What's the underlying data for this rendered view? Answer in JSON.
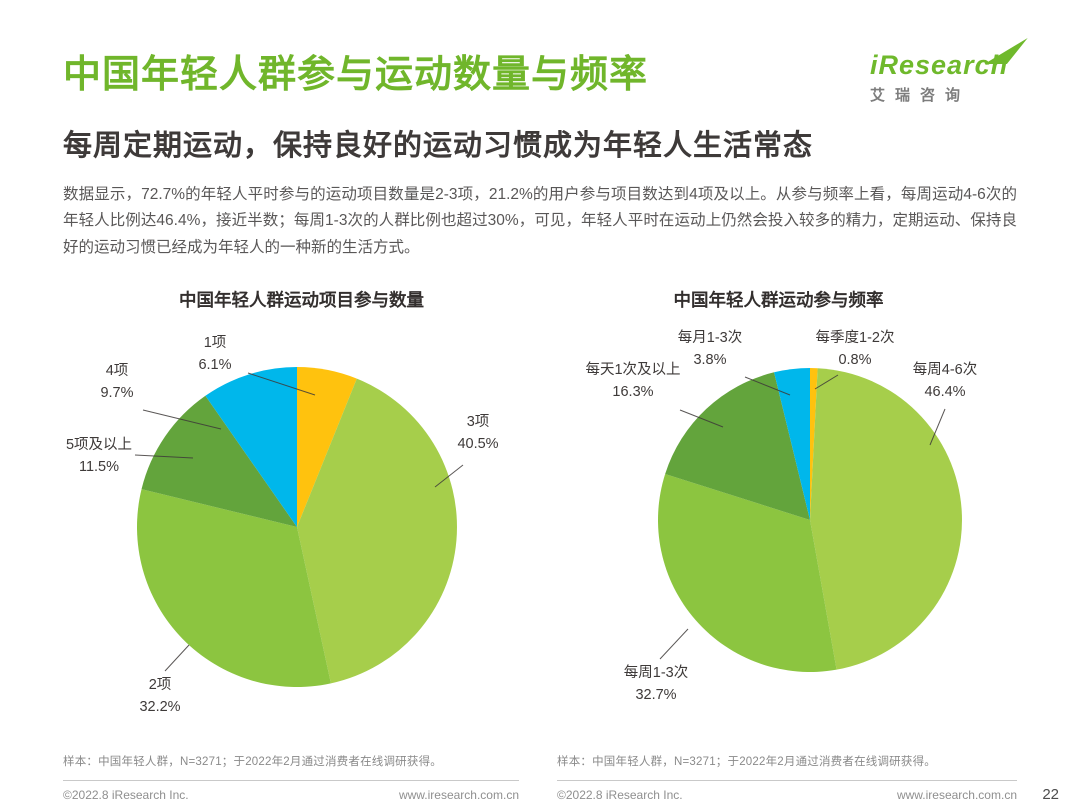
{
  "header": {
    "title": "中国年轻人群参与运动数量与频率",
    "subtitle": "每周定期运动，保持良好的运动习惯成为年轻人生活常态",
    "body": "数据显示，72.7%的年轻人平时参与的运动项目数量是2-3项，21.2%的用户参与项目数达到4项及以上。从参与频率上看，每周运动4-6次的年轻人比例达46.4%，接近半数；每周1-3次的人群比例也超过30%，可见，年轻人平时在运动上仍然会投入较多的精力，定期运动、保持良好的运动习惯已经成为年轻人的一种新的生活方式。"
  },
  "logo": {
    "brand": "iResearch",
    "brand_cn": "艾瑞咨询"
  },
  "chart_data": [
    {
      "type": "pie",
      "title": "中国年轻人群运动项目参与数量",
      "labels": [
        "1项",
        "3项",
        "2项",
        "5项及以上",
        "4项"
      ],
      "values": [
        6.1,
        40.5,
        32.2,
        11.5,
        9.7
      ],
      "pct_labels": [
        "6.1%",
        "40.5%",
        "32.2%",
        "11.5%",
        "9.7%"
      ],
      "colors": [
        "#ffc20e",
        "#a6ce4b",
        "#8cc540",
        "#63a43c",
        "#00b7eb"
      ],
      "start_angle_deg": 0,
      "direction": "clockwise",
      "legend": "none",
      "note": "样本：中国年轻人群，N=3271；于2022年2月通过消费者在线调研获得。"
    },
    {
      "type": "pie",
      "title": "中国年轻人群运动参与频率",
      "labels": [
        "每季度1-2次",
        "每周4-6次",
        "每周1-3次",
        "每天1次及以上",
        "每月1-3次"
      ],
      "values": [
        0.8,
        46.4,
        32.7,
        16.3,
        3.8
      ],
      "pct_labels": [
        "0.8%",
        "46.4%",
        "32.7%",
        "16.3%",
        "3.8%"
      ],
      "colors": [
        "#ffc20e",
        "#a6ce4b",
        "#8cc540",
        "#63a43c",
        "#00b7eb"
      ],
      "start_angle_deg": 0,
      "direction": "clockwise",
      "legend": "none",
      "note": "样本：中国年轻人群，N=3271；于2022年2月通过消费者在线调研获得。"
    }
  ],
  "footer": {
    "copyright_left": "©2022.8 iResearch Inc.",
    "site_left": "www.iresearch.com.cn",
    "copyright_right": "©2022.8 iResearch Inc.",
    "site_right": "www.iresearch.com.cn",
    "page_number": "22"
  }
}
